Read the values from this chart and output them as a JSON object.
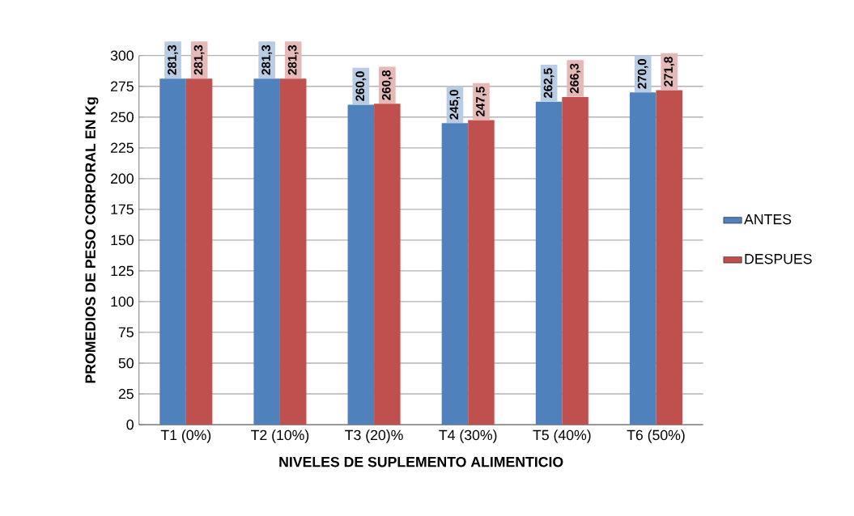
{
  "chart_data": {
    "type": "bar",
    "xlabel": "NIVELES DE SUPLEMENTO ALIMENTICIO",
    "ylabel": "PROMEDIOS DE PESO CORPORAL EN Kg",
    "categories": [
      "T1 (0%)",
      "T2 (10%)",
      "T3 (20)%",
      "T4 (30%)",
      "T5 (40%)",
      "T6 (50%)"
    ],
    "series": [
      {
        "name": "ANTES",
        "color": "#4f81bd",
        "values": [
          281.3,
          281.3,
          260.0,
          245.0,
          262.5,
          270.0
        ],
        "value_labels": [
          "281,3",
          "281,3",
          "260,0",
          "245,0",
          "262,5",
          "270,0"
        ]
      },
      {
        "name": "DESPUES",
        "color": "#c0504d",
        "values": [
          281.3,
          281.3,
          260.8,
          247.5,
          266.3,
          271.8
        ],
        "value_labels": [
          "281,3",
          "281,3",
          "260,8",
          "247,5",
          "266,3",
          "271,8"
        ]
      }
    ],
    "ylim": [
      0,
      300
    ],
    "yticks": [
      0,
      25,
      50,
      75,
      100,
      125,
      150,
      175,
      200,
      225,
      250,
      275,
      300
    ],
    "grid": "y",
    "legend": "right"
  }
}
